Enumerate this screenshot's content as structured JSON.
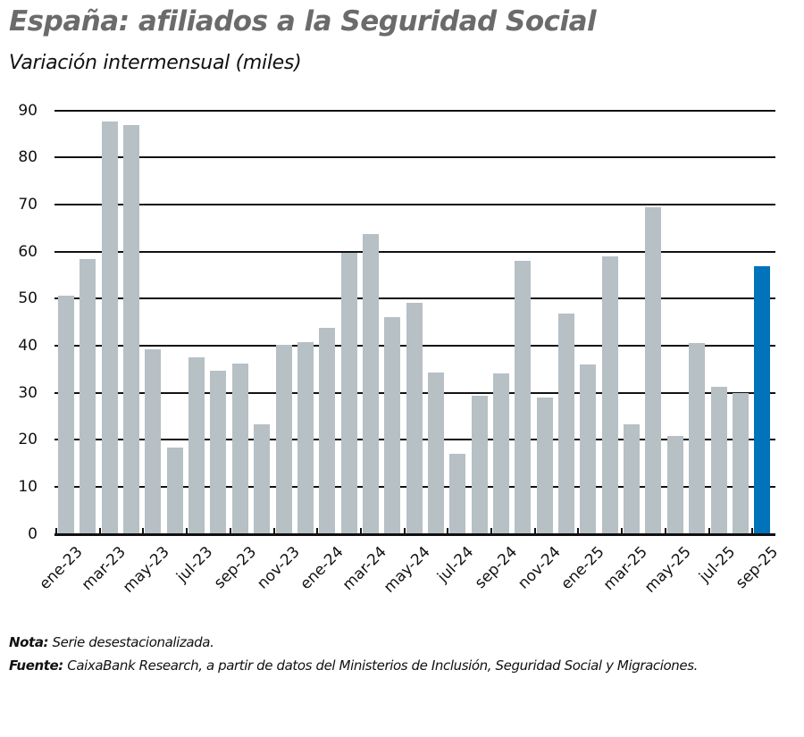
{
  "header": {
    "title": "España: afiliados a la Seguridad Social",
    "subtitle": "Variación intermensual (miles)"
  },
  "colors": {
    "bar_default": "#b6c0c5",
    "bar_highlight": "#0073bb",
    "title": "#6b6b6b",
    "grid": "#111111"
  },
  "footer": {
    "nota_label": "Nota:",
    "nota_text": " Serie desestacionalizada.",
    "fuente_label": "Fuente:",
    "fuente_text": " CaixaBank Research, a partir de datos del Ministerios de Inclusión, Seguridad Social y Migraciones."
  },
  "chart_data": {
    "type": "bar",
    "title": "España: afiliados a la Seguridad Social",
    "subtitle": "Variación intermensual (miles)",
    "xlabel": "",
    "ylabel": "miles",
    "ylim": [
      0,
      90
    ],
    "yticks": [
      0,
      10,
      20,
      30,
      40,
      50,
      60,
      70,
      80,
      90
    ],
    "grid": true,
    "legend": null,
    "categories": [
      "ene-23",
      "feb-23",
      "mar-23",
      "abr-23",
      "may-23",
      "jun-23",
      "jul-23",
      "ago-23",
      "sep-23",
      "oct-23",
      "nov-23",
      "dic-23",
      "ene-24",
      "feb-24",
      "mar-24",
      "abr-24",
      "may-24",
      "jun-24",
      "jul-24",
      "ago-24",
      "sep-24",
      "oct-24",
      "nov-24",
      "dic-24",
      "ene-25",
      "feb-25",
      "mar-25",
      "abr-25",
      "may-25",
      "jun-25",
      "jul-25",
      "ago-25",
      "sep-25"
    ],
    "tick_labels": [
      "ene-23",
      "mar-23",
      "may-23",
      "jul-23",
      "sep-23",
      "nov-23",
      "ene-24",
      "mar-24",
      "may-24",
      "jul-24",
      "sep-24",
      "nov-24",
      "ene-25",
      "mar-25",
      "may-25",
      "jul-25",
      "sep-25"
    ],
    "values": [
      50.6,
      58.4,
      87.7,
      86.9,
      39.2,
      18.3,
      37.5,
      34.7,
      36.2,
      23.3,
      40.1,
      40.7,
      43.8,
      59.8,
      63.7,
      46.1,
      49.1,
      34.3,
      17.0,
      29.3,
      34.1,
      58.1,
      29.0,
      46.8,
      36.0,
      59.0,
      23.3,
      69.4,
      20.8,
      40.5,
      31.2,
      29.9,
      56.9
    ],
    "highlight_index": 32
  }
}
